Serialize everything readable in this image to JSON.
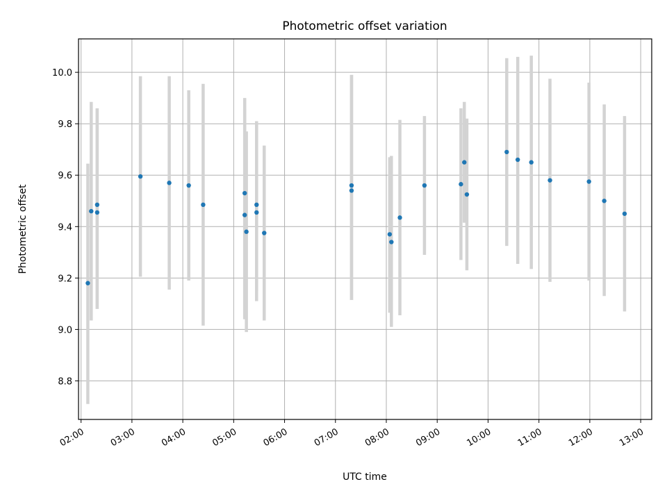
{
  "chart_data": {
    "type": "scatter",
    "title": "Photometric offset variation",
    "xlabel": "UTC time",
    "ylabel": "Photometric offset",
    "grid": true,
    "xlim": [
      "01:57",
      "13:13"
    ],
    "ylim": [
      8.65,
      10.13
    ],
    "x_ticks": [
      "02:00",
      "03:00",
      "04:00",
      "05:00",
      "06:00",
      "07:00",
      "08:00",
      "09:00",
      "10:00",
      "11:00",
      "12:00",
      "13:00"
    ],
    "y_ticks": [
      "8.8",
      "9.0",
      "9.2",
      "9.4",
      "9.6",
      "9.8",
      "10.0"
    ],
    "colors": {
      "points": "#1f77b4",
      "error_bars": "#d3d3d3",
      "grid": "#b0b0b0"
    },
    "points": [
      {
        "x": "02:08",
        "y": 9.18,
        "low": 8.71,
        "high": 9.645
      },
      {
        "x": "02:12",
        "y": 9.46,
        "low": 9.035,
        "high": 9.885
      },
      {
        "x": "02:19",
        "y": 9.455,
        "low": 9.08,
        "high": 9.86
      },
      {
        "x": "02:19",
        "y": 9.485,
        "low": 9.08,
        "high": 9.86
      },
      {
        "x": "03:10",
        "y": 9.595,
        "low": 9.205,
        "high": 9.985
      },
      {
        "x": "03:44",
        "y": 9.57,
        "low": 9.155,
        "high": 9.985
      },
      {
        "x": "04:07",
        "y": 9.56,
        "low": 9.19,
        "high": 9.93
      },
      {
        "x": "04:24",
        "y": 9.485,
        "low": 9.015,
        "high": 9.955
      },
      {
        "x": "05:13",
        "y": 9.53,
        "low": 9.04,
        "high": 9.9
      },
      {
        "x": "05:13",
        "y": 9.445,
        "low": 9.04,
        "high": 9.86
      },
      {
        "x": "05:15",
        "y": 9.38,
        "low": 8.99,
        "high": 9.77
      },
      {
        "x": "05:27",
        "y": 9.485,
        "low": 9.11,
        "high": 9.81
      },
      {
        "x": "05:27",
        "y": 9.455,
        "low": 9.15,
        "high": 9.8
      },
      {
        "x": "05:36",
        "y": 9.375,
        "low": 9.035,
        "high": 9.715
      },
      {
        "x": "07:19",
        "y": 9.56,
        "low": 9.115,
        "high": 9.99
      },
      {
        "x": "07:19",
        "y": 9.54,
        "low": 9.115,
        "high": 9.99
      },
      {
        "x": "08:04",
        "y": 9.37,
        "low": 9.065,
        "high": 9.67
      },
      {
        "x": "08:06",
        "y": 9.34,
        "low": 9.01,
        "high": 9.675
      },
      {
        "x": "08:16",
        "y": 9.435,
        "low": 9.055,
        "high": 9.815
      },
      {
        "x": "08:45",
        "y": 9.56,
        "low": 9.29,
        "high": 9.83
      },
      {
        "x": "09:28",
        "y": 9.565,
        "low": 9.27,
        "high": 9.86
      },
      {
        "x": "09:32",
        "y": 9.65,
        "low": 9.415,
        "high": 9.885
      },
      {
        "x": "09:35",
        "y": 9.525,
        "low": 9.23,
        "high": 9.82
      },
      {
        "x": "10:22",
        "y": 9.69,
        "low": 9.325,
        "high": 10.055
      },
      {
        "x": "10:35",
        "y": 9.66,
        "low": 9.255,
        "high": 10.06
      },
      {
        "x": "10:51",
        "y": 9.65,
        "low": 9.235,
        "high": 10.065
      },
      {
        "x": "11:13",
        "y": 9.58,
        "low": 9.185,
        "high": 9.975
      },
      {
        "x": "11:59",
        "y": 9.575,
        "low": 9.19,
        "high": 9.96
      },
      {
        "x": "12:17",
        "y": 9.5,
        "low": 9.13,
        "high": 9.875
      },
      {
        "x": "12:41",
        "y": 9.45,
        "low": 9.07,
        "high": 9.83
      }
    ]
  }
}
